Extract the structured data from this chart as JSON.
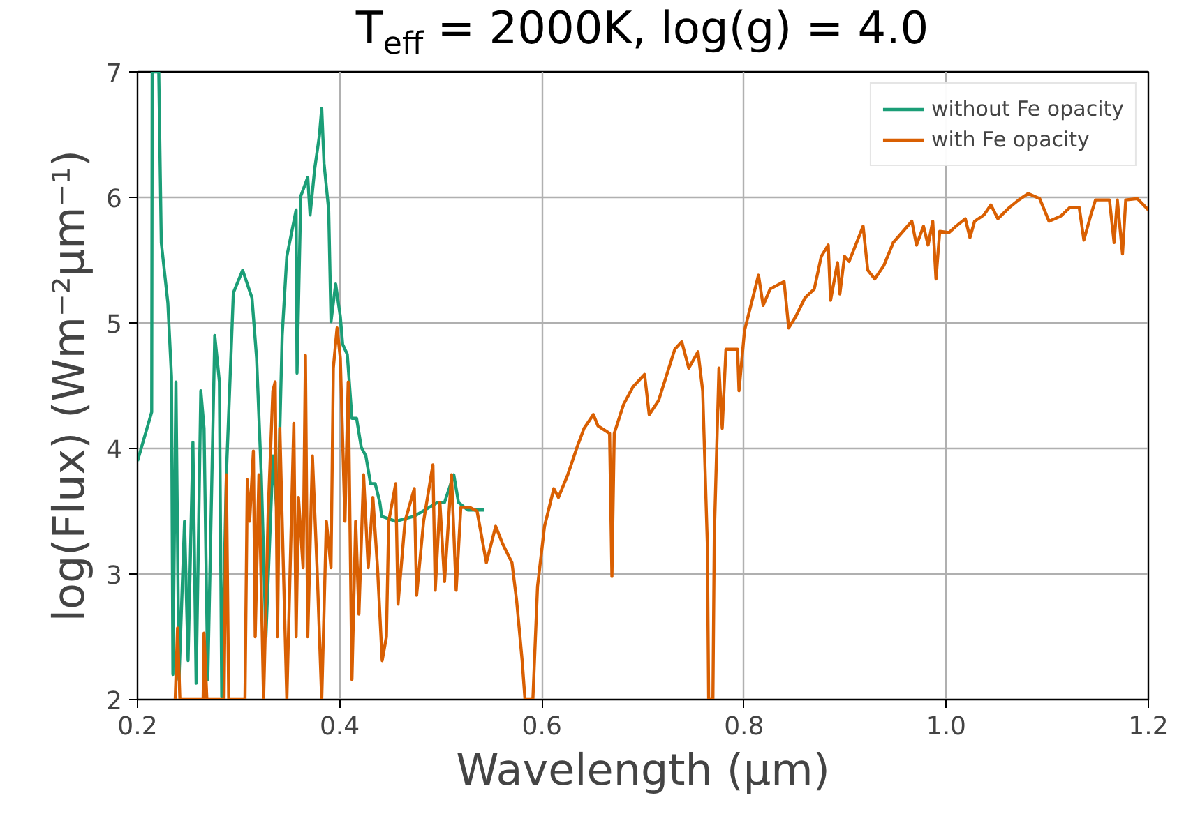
{
  "chart_data": {
    "type": "line",
    "title": "T$_{eff}$ = 2000K, log(g) = 4.0",
    "xlabel": "Wavelength (μm)",
    "ylabel": "log(Flux) (Wm⁻²μm⁻¹)",
    "xlim": [
      0.2,
      1.2
    ],
    "ylim": [
      2,
      7
    ],
    "xticks": [
      0.2,
      0.4,
      0.6,
      0.8,
      {
        "value": 1,
        "label": "1.0"
      },
      1.2
    ],
    "yticks": [
      2,
      3,
      4,
      5,
      6,
      7
    ],
    "grid": true,
    "legend": "top right",
    "line_style": "solid",
    "marker": "none",
    "series": [
      {
        "name": "without Fe opacity",
        "color": "#1b9e77",
        "x": [
          0.2,
          0.214,
          0.2145,
          0.221,
          0.2235,
          0.23,
          0.2336,
          0.235,
          0.238,
          0.241,
          0.2465,
          0.25,
          0.2548,
          0.258,
          0.2626,
          0.2658,
          0.2695,
          0.2764,
          0.281,
          0.2833,
          0.2879,
          0.2948,
          0.304,
          0.3132,
          0.3178,
          0.3224,
          0.327,
          0.334,
          0.3385,
          0.3431,
          0.3477,
          0.3569,
          0.3578,
          0.3615,
          0.3684,
          0.3707,
          0.3753,
          0.3799,
          0.3822,
          0.3845,
          0.3891,
          0.3914,
          0.396,
          0.4006,
          0.4029,
          0.4075,
          0.4121,
          0.4167,
          0.4213,
          0.4259,
          0.4305,
          0.4351,
          0.4397,
          0.4416,
          0.4554,
          0.4738,
          0.4968,
          0.5037,
          0.5129,
          0.5175,
          0.5267,
          0.5428
        ],
        "values": [
          3.9,
          4.29,
          7.0,
          7.0,
          5.64,
          5.16,
          4.57,
          2.2,
          4.53,
          2.16,
          3.42,
          2.31,
          4.05,
          2.13,
          4.46,
          4.16,
          2.16,
          4.9,
          4.53,
          2.02,
          3.79,
          5.24,
          5.42,
          5.2,
          4.72,
          3.79,
          2.5,
          3.94,
          3.42,
          4.9,
          5.53,
          5.9,
          4.6,
          6.01,
          6.16,
          5.86,
          6.23,
          6.49,
          6.71,
          6.27,
          5.9,
          5.01,
          5.31,
          5.05,
          4.83,
          4.75,
          4.24,
          4.24,
          4.01,
          3.94,
          3.72,
          3.72,
          3.57,
          3.46,
          3.42,
          3.46,
          3.57,
          3.57,
          3.79,
          3.57,
          3.51,
          3.51
        ]
      },
      {
        "name": "with Fe opacity",
        "color": "#d95f02",
        "x": [
          0.2373,
          0.2396,
          0.2419,
          0.2649,
          0.2658,
          0.2686,
          0.2856,
          0.2879,
          0.2902,
          0.3063,
          0.3086,
          0.3109,
          0.3146,
          0.3164,
          0.3201,
          0.3247,
          0.3293,
          0.3339,
          0.3362,
          0.3385,
          0.3408,
          0.3431,
          0.3477,
          0.3546,
          0.3569,
          0.3592,
          0.3638,
          0.3661,
          0.3684,
          0.373,
          0.3776,
          0.3822,
          0.3868,
          0.3914,
          0.3937,
          0.3974,
          0.4006,
          0.4052,
          0.4084,
          0.4121,
          0.4158,
          0.419,
          0.4236,
          0.4282,
          0.4328,
          0.4374,
          0.442,
          0.4462,
          0.4485,
          0.4554,
          0.4577,
          0.4646,
          0.4738,
          0.4761,
          0.483,
          0.4922,
          0.4945,
          0.4991,
          0.5037,
          0.5106,
          0.5152,
          0.5198,
          0.529,
          0.5359,
          0.5451,
          0.5543,
          0.5612,
          0.5704,
          0.575,
          0.5805,
          0.5833,
          0.5911,
          0.5957,
          0.6026,
          0.6118,
          0.6164,
          0.6256,
          0.6348,
          0.6417,
          0.6509,
          0.6555,
          0.667,
          0.6693,
          0.6716,
          0.6808,
          0.6901,
          0.7016,
          0.7062,
          0.7154,
          0.7315,
          0.7384,
          0.7453,
          0.7545,
          0.7591,
          0.7637,
          0.765,
          0.7692,
          0.7706,
          0.7752,
          0.7784,
          0.7821,
          0.7936,
          0.795,
          0.8005,
          0.8143,
          0.8189,
          0.8258,
          0.8396,
          0.8442,
          0.8511,
          0.8603,
          0.8695,
          0.8764,
          0.8833,
          0.8856,
          0.8925,
          0.8948,
          0.8994,
          0.904,
          0.9178,
          0.9224,
          0.9293,
          0.9385,
          0.9476,
          0.966,
          0.9706,
          0.9775,
          0.9821,
          0.9867,
          0.9899,
          0.9936,
          1.0028,
          1.0097,
          1.0189,
          1.0235,
          1.0281,
          1.0373,
          1.0442,
          1.0511,
          1.0626,
          1.0718,
          1.081,
          1.0925,
          1.1017,
          1.1132,
          1.1224,
          1.1316,
          1.1362,
          1.1431,
          1.1477,
          1.1615,
          1.1661,
          1.1693,
          1.1744,
          1.1776,
          1.1891,
          1.2
        ],
        "values": [
          2.0,
          2.57,
          2.0,
          2.0,
          2.53,
          2.0,
          2.0,
          3.79,
          2.0,
          2.0,
          3.75,
          3.42,
          3.98,
          2.5,
          3.79,
          2.0,
          3.5,
          4.46,
          4.53,
          2.5,
          4.16,
          3.42,
          2.0,
          4.2,
          2.5,
          3.61,
          3.05,
          4.74,
          2.5,
          3.94,
          3.05,
          2.0,
          3.42,
          3.05,
          4.64,
          4.96,
          4.72,
          3.42,
          4.53,
          2.16,
          3.42,
          2.68,
          3.79,
          3.05,
          3.61,
          3.05,
          2.31,
          2.5,
          3.42,
          3.72,
          2.76,
          3.42,
          3.68,
          2.83,
          3.42,
          3.87,
          2.87,
          3.57,
          2.94,
          3.79,
          2.87,
          3.53,
          3.53,
          3.5,
          3.09,
          3.38,
          3.24,
          3.09,
          2.79,
          2.31,
          2.0,
          2.0,
          2.9,
          3.38,
          3.68,
          3.61,
          3.79,
          4.01,
          4.16,
          4.27,
          4.18,
          4.12,
          2.98,
          4.12,
          4.35,
          4.49,
          4.59,
          4.27,
          4.38,
          4.79,
          4.85,
          4.64,
          4.77,
          4.46,
          3.24,
          2.0,
          2.0,
          3.31,
          4.64,
          4.16,
          4.79,
          4.79,
          4.46,
          4.94,
          5.38,
          5.14,
          5.27,
          5.33,
          4.96,
          5.05,
          5.2,
          5.27,
          5.53,
          5.62,
          5.18,
          5.48,
          5.23,
          5.53,
          5.49,
          5.77,
          5.42,
          5.35,
          5.46,
          5.64,
          5.81,
          5.62,
          5.77,
          5.62,
          5.81,
          5.35,
          5.73,
          5.72,
          5.77,
          5.83,
          5.68,
          5.81,
          5.86,
          5.94,
          5.83,
          5.92,
          5.98,
          6.03,
          5.99,
          5.81,
          5.85,
          5.92,
          5.92,
          5.66,
          5.86,
          5.98,
          5.98,
          5.64,
          5.98,
          5.55,
          5.98,
          5.99,
          5.9
        ]
      }
    ]
  }
}
